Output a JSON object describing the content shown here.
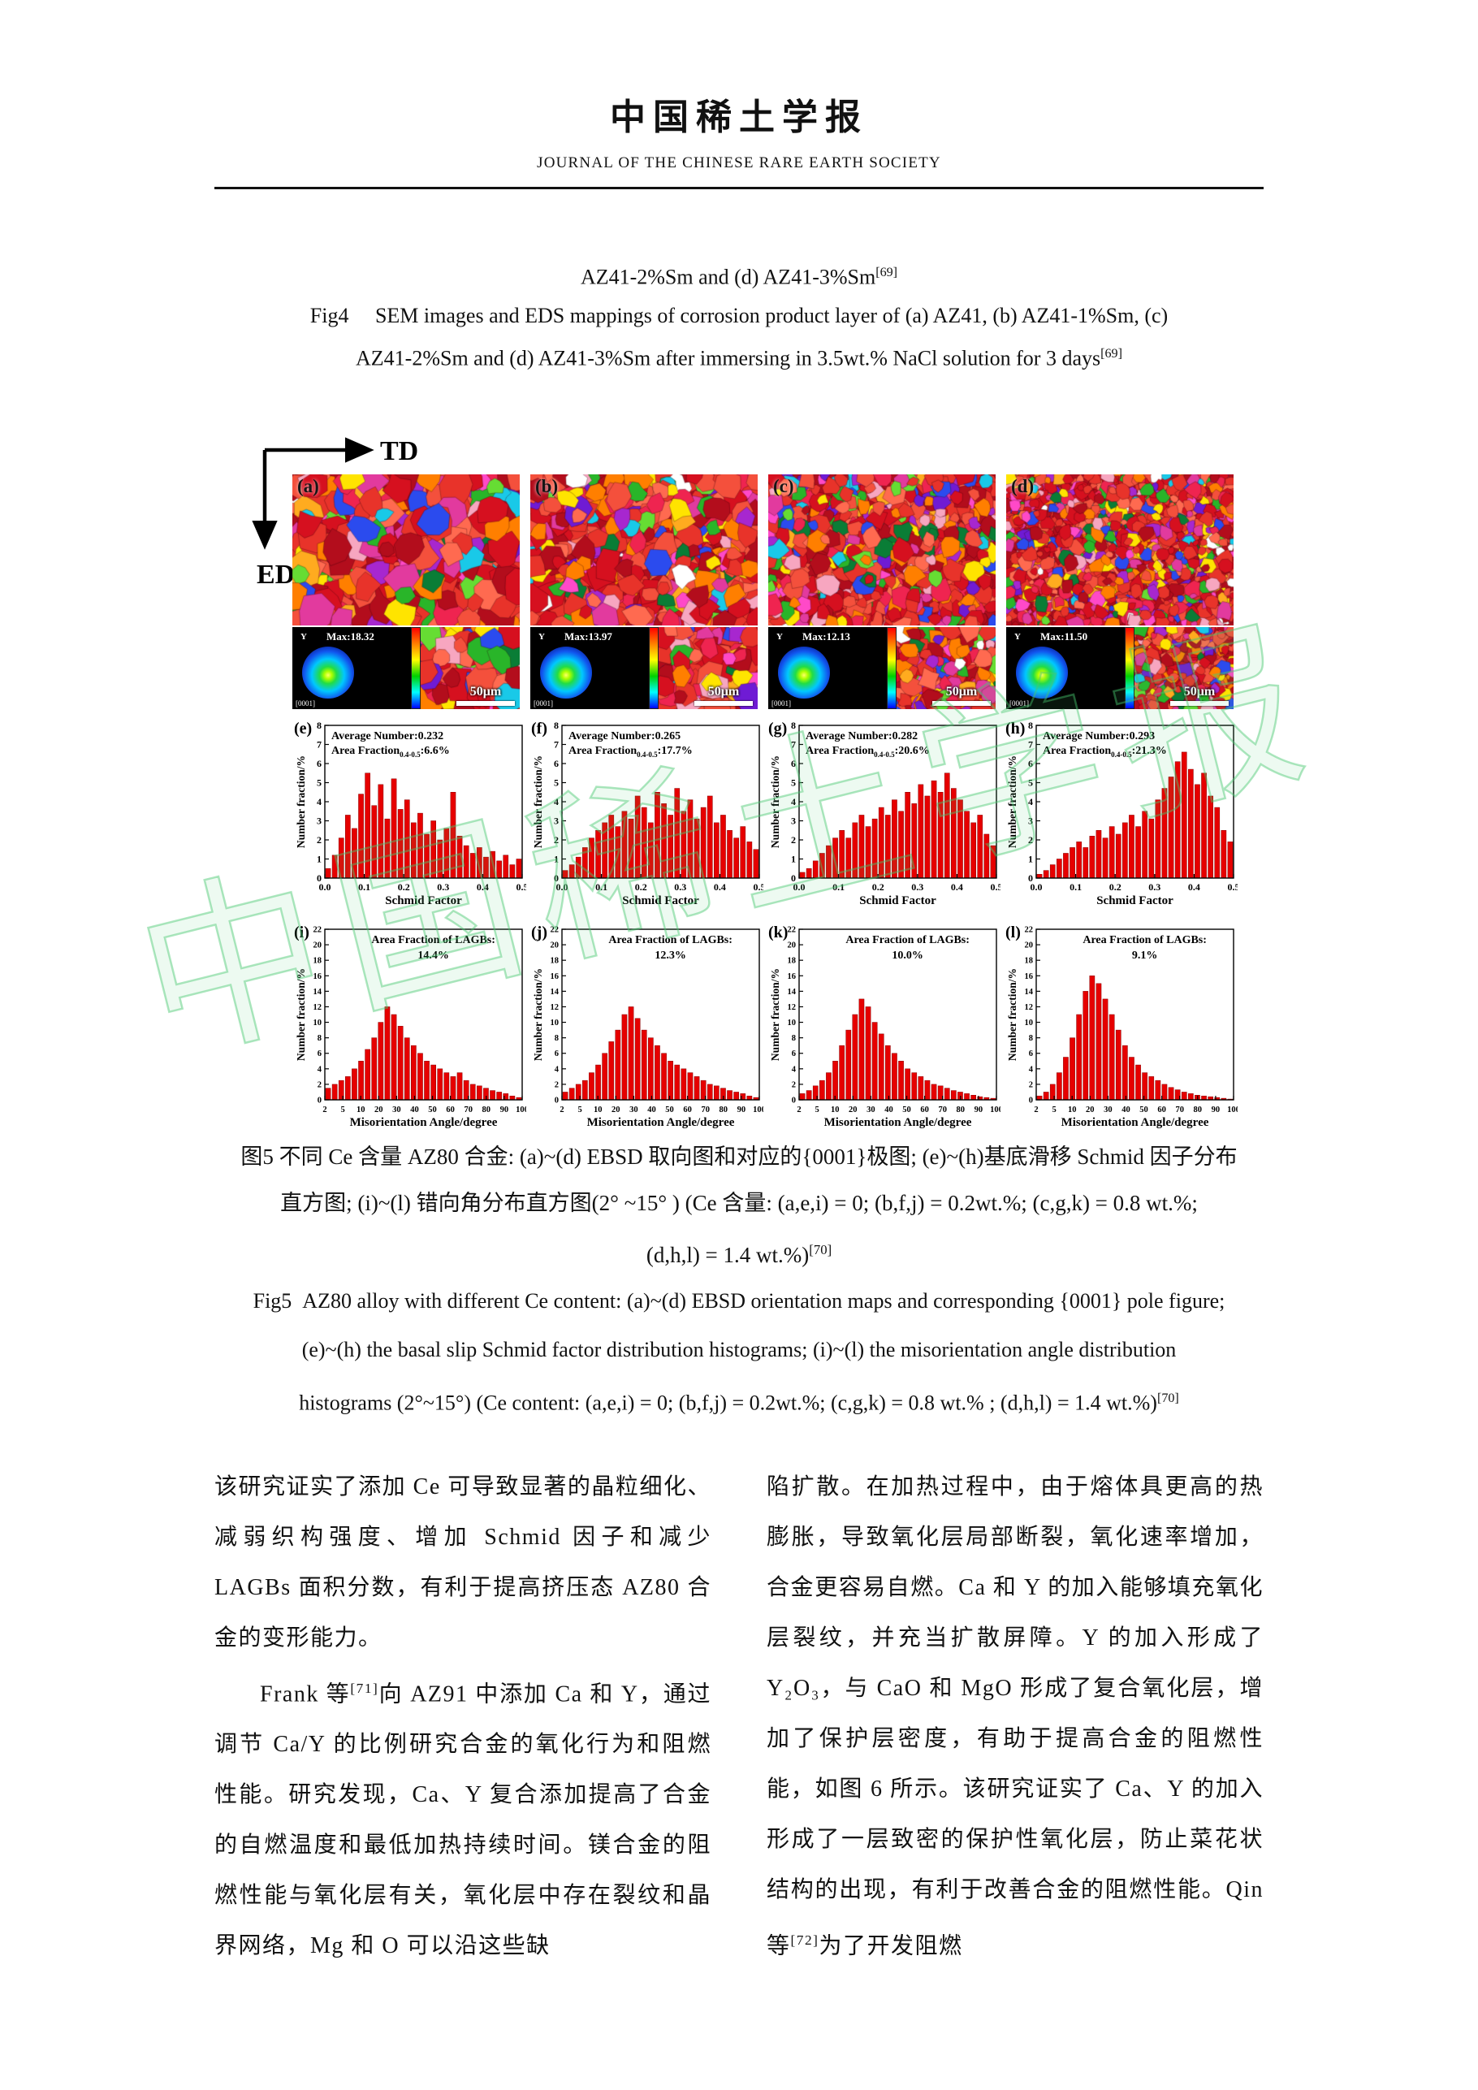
{
  "header": {
    "journal_title_zh": "中国稀土学报",
    "journal_title_en": "JOURNAL OF THE CHINESE RARE EARTH SOCIETY"
  },
  "fig4_caption": {
    "lines": [
      "AZ41-2%Sm and (d) AZ41-3%Sm[69]",
      "Fig4     SEM images and EDS mappings of corrosion product layer of (a) AZ41, (b) AZ41-1%Sm, (c)",
      "AZ41-2%Sm and (d) AZ41-3%Sm after immersing in 3.5wt.% NaCl solution for 3 days[69]"
    ]
  },
  "figure5": {
    "td_label": "TD",
    "ed_label": "ED",
    "columns": [
      {
        "panel_letter": "(a)",
        "pole_max": "Max:18.32",
        "pole_axis": "Y",
        "pole_plane": "[0001]",
        "scale_label": "50μm"
      },
      {
        "panel_letter": "(b)",
        "pole_max": "Max:13.97",
        "pole_axis": "Y",
        "pole_plane": "[0001]",
        "scale_label": "50μm"
      },
      {
        "panel_letter": "(c)",
        "pole_max": "Max:12.13",
        "pole_axis": "Y",
        "pole_plane": "[0001]",
        "scale_label": "50μm"
      },
      {
        "panel_letter": "(d)",
        "pole_max": "Max:11.50",
        "pole_axis": "Y",
        "pole_plane": "[0001]",
        "scale_label": "50μm"
      }
    ]
  },
  "chart_data": [
    {
      "type": "bar",
      "panel": "(e)",
      "xlabel": "Schmid Factor",
      "ylabel": "Number fraction/%",
      "ylim": [
        0,
        8
      ],
      "ytick_step": 1,
      "x_range": [
        0,
        0.5
      ],
      "xticks": [
        "0.0",
        "0.1",
        "0.2",
        "0.3",
        "0.4",
        "0.5"
      ],
      "average_number": 0.232,
      "area_fraction_0p4_0p5": "6.6%",
      "annotation": {
        "line1": "Average Number:0.232",
        "line2_pre": "Area Fraction",
        "line2_sub": "0.4-0.5",
        "line2_post": ":6.6%"
      },
      "values": [
        0.5,
        1.2,
        2.1,
        3.3,
        2.6,
        4.4,
        5.5,
        3.8,
        4.9,
        3.1,
        5.2,
        3.6,
        4.1,
        2.9,
        3.4,
        2.3,
        3.0,
        2.0,
        2.6,
        4.5,
        2.2,
        1.7,
        1.3,
        1.6,
        1.1,
        1.4,
        0.9,
        1.2,
        0.7,
        1.0
      ]
    },
    {
      "type": "bar",
      "panel": "(f)",
      "xlabel": "Schmid Factor",
      "ylabel": "Number fraction/%",
      "ylim": [
        0,
        8
      ],
      "ytick_step": 1,
      "x_range": [
        0,
        0.5
      ],
      "xticks": [
        "0.0",
        "0.1",
        "0.2",
        "0.3",
        "0.4",
        "0.5"
      ],
      "average_number": 0.265,
      "area_fraction_0p4_0p5": "17.7%",
      "annotation": {
        "line1": "Average Number:0.265",
        "line2_pre": "Area Fraction",
        "line2_sub": "0.4-0.5",
        "line2_post": ":17.7%"
      },
      "values": [
        0.4,
        0.7,
        1.1,
        1.6,
        2.1,
        2.5,
        2.9,
        3.3,
        2.7,
        3.5,
        3.1,
        4.3,
        3.7,
        2.9,
        4.5,
        3.9,
        3.3,
        4.7,
        3.5,
        4.1,
        3.1,
        3.7,
        4.3,
        2.9,
        3.3,
        2.5,
        2.1,
        2.7,
        1.9,
        1.5
      ]
    },
    {
      "type": "bar",
      "panel": "(g)",
      "xlabel": "Schmid Factor",
      "ylabel": "Number fraction/%",
      "ylim": [
        0,
        8
      ],
      "ytick_step": 1,
      "x_range": [
        0,
        0.5
      ],
      "xticks": [
        "0.0",
        "0.1",
        "0.2",
        "0.3",
        "0.4",
        "0.5"
      ],
      "average_number": 0.282,
      "area_fraction_0p4_0p5": "20.6%",
      "annotation": {
        "line1": "Average Number:0.282",
        "line2_pre": "Area Fraction",
        "line2_sub": "0.4-0.5",
        "line2_post": ":20.6%"
      },
      "values": [
        0.3,
        0.5,
        0.9,
        1.3,
        1.7,
        2.1,
        2.5,
        2.1,
        2.9,
        3.3,
        2.7,
        3.1,
        3.7,
        3.3,
        4.1,
        3.5,
        4.5,
        3.9,
        4.9,
        4.3,
        5.1,
        4.5,
        5.5,
        4.7,
        4.1,
        3.5,
        2.9,
        3.3,
        2.3,
        1.7
      ]
    },
    {
      "type": "bar",
      "panel": "(h)",
      "xlabel": "Schmid Factor",
      "ylabel": "Number fraction/%",
      "ylim": [
        0,
        8
      ],
      "ytick_step": 1,
      "x_range": [
        0,
        0.5
      ],
      "xticks": [
        "0.0",
        "0.1",
        "0.2",
        "0.3",
        "0.4",
        "0.5"
      ],
      "average_number": 0.293,
      "area_fraction_0p4_0p5": "21.3%",
      "annotation": {
        "line1": "Average Number:0.293",
        "line2_pre": "Area Fraction",
        "line2_sub": "0.4-0.5",
        "line2_post": ":21.3%"
      },
      "values": [
        0.2,
        0.4,
        0.7,
        1.0,
        1.3,
        1.6,
        1.9,
        1.6,
        2.2,
        2.5,
        2.1,
        2.7,
        2.3,
        2.9,
        3.3,
        2.7,
        3.5,
        3.1,
        4.1,
        4.7,
        5.3,
        6.1,
        6.6,
        5.7,
        4.9,
        5.5,
        4.3,
        3.7,
        2.5,
        1.9
      ]
    },
    {
      "type": "bar",
      "panel": "(i)",
      "xlabel": "Misorientation Angle/degree",
      "ylabel": "Number fraction/%",
      "ylim": [
        0,
        22
      ],
      "ytick_step": 2,
      "x_range": [
        2,
        100
      ],
      "xticks": [
        "2",
        "5",
        "10",
        "20",
        "30",
        "40",
        "50",
        "60",
        "70",
        "80",
        "90",
        "100"
      ],
      "area_fraction_lagbs": "14.4%",
      "annotation": {
        "line1": "Area Fraction of LAGBs:",
        "line2": "14.4%"
      },
      "values": [
        1.5,
        2.0,
        2.5,
        3.0,
        4.0,
        5.0,
        6.5,
        8.0,
        10.0,
        12.0,
        11.0,
        9.5,
        8.0,
        7.0,
        6.0,
        5.0,
        4.5,
        4.0,
        3.5,
        3.0,
        3.5,
        2.5,
        2.0,
        1.8,
        1.5,
        1.2,
        1.0,
        0.8,
        0.5,
        0.3
      ]
    },
    {
      "type": "bar",
      "panel": "(j)",
      "xlabel": "Misorientation Angle/degree",
      "ylabel": "Number fraction/%",
      "ylim": [
        0,
        22
      ],
      "ytick_step": 2,
      "x_range": [
        2,
        100
      ],
      "xticks": [
        "2",
        "5",
        "10",
        "20",
        "30",
        "40",
        "50",
        "60",
        "70",
        "80",
        "90",
        "100"
      ],
      "area_fraction_lagbs": "12.3%",
      "annotation": {
        "line1": "Area Fraction of LAGBs:",
        "line2": "12.3%"
      },
      "values": [
        1.0,
        1.5,
        2.0,
        2.5,
        3.5,
        4.5,
        6.0,
        7.5,
        9.0,
        11.0,
        12.0,
        10.5,
        9.0,
        8.0,
        7.0,
        6.0,
        5.0,
        4.5,
        4.0,
        3.5,
        3.0,
        2.5,
        2.0,
        1.8,
        1.5,
        1.2,
        1.0,
        0.8,
        0.5,
        0.3
      ]
    },
    {
      "type": "bar",
      "panel": "(k)",
      "xlabel": "Misorientation Angle/degree",
      "ylabel": "Number fraction/%",
      "ylim": [
        0,
        22
      ],
      "ytick_step": 2,
      "x_range": [
        2,
        100
      ],
      "xticks": [
        "2",
        "5",
        "10",
        "20",
        "30",
        "40",
        "50",
        "60",
        "70",
        "80",
        "90",
        "100"
      ],
      "area_fraction_lagbs": "10.0%",
      "annotation": {
        "line1": "Area Fraction of LAGBs:",
        "line2": "10.0%"
      },
      "values": [
        0.8,
        1.2,
        1.8,
        2.5,
        3.5,
        5.0,
        7.0,
        9.0,
        11.0,
        13.0,
        12.0,
        10.0,
        8.5,
        7.0,
        6.0,
        5.0,
        4.0,
        3.5,
        3.0,
        2.5,
        2.0,
        1.8,
        1.5,
        1.2,
        1.0,
        0.8,
        0.6,
        0.4,
        0.3,
        0.2
      ]
    },
    {
      "type": "bar",
      "panel": "(l)",
      "xlabel": "Misorientation Angle/degree",
      "ylabel": "Number fraction/%",
      "ylim": [
        0,
        22
      ],
      "ytick_step": 2,
      "x_range": [
        2,
        100
      ],
      "xticks": [
        "2",
        "5",
        "10",
        "20",
        "30",
        "40",
        "50",
        "60",
        "70",
        "80",
        "90",
        "100"
      ],
      "area_fraction_lagbs": "9.1%",
      "annotation": {
        "line1": "Area Fraction of LAGBs:",
        "line2": "9.1%"
      },
      "values": [
        0.5,
        1.0,
        2.0,
        3.5,
        5.5,
        8.0,
        11.0,
        14.0,
        16.0,
        15.0,
        13.0,
        11.0,
        9.0,
        7.0,
        5.5,
        4.5,
        3.5,
        3.0,
        2.5,
        2.0,
        1.6,
        1.3,
        1.0,
        0.8,
        0.6,
        0.5,
        0.4,
        0.3,
        0.2,
        0.1
      ]
    }
  ],
  "fig5_caption_zh": {
    "lines": [
      "图5 不同 Ce 含量 AZ80 合金: (a)~(d) EBSD 取向图和对应的{0001}极图; (e)~(h)基底滑移 Schmid 因子分布",
      "直方图; (i)~(l) 错向角分布直方图(2° ~15° ) (Ce 含量: (a,e,i) = 0; (b,f,j) = 0.2wt.%; (c,g,k) = 0.8 wt.%;",
      "(d,h,l) = 1.4 wt.%)[70]"
    ]
  },
  "fig5_caption_en": {
    "lines": [
      "Fig5  AZ80 alloy with different Ce content: (a)~(d) EBSD orientation maps and corresponding {0001} pole figure;",
      "(e)~(h) the basal slip Schmid factor distribution histograms; (i)~(l) the misorientation angle distribution",
      "histograms (2°~15°) (Ce content: (a,e,i) = 0; (b,f,j) = 0.2wt.%; (c,g,k) = 0.8 wt.% ; (d,h,l) = 1.4 wt.%)[70]"
    ]
  },
  "body": {
    "left": [
      "该研究证实了添加 Ce 可导致显著的晶粒细化、减弱织构强度、增加 Schmid 因子和减少 LAGBs 面积分数，有利于提高挤压态 AZ80 合金的变形能力。",
      "Frank 等[71]向 AZ91 中添加 Ca 和 Y，通过调节 Ca/Y 的比例研究合金的氧化行为和阻燃性能。研究发现，Ca、Y 复合添加提高了合金的自燃温度和最低加热持续时间。镁合金的阻燃性能与氧化层有关，氧化层中存在裂纹和晶界网络，Mg 和 O 可以沿这些缺"
    ],
    "right": [
      "陷扩散。在加热过程中，由于熔体具更高的热膨胀，导致氧化层局部断裂，氧化速率增加，合金更容易自燃。Ca 和 Y 的加入能够填充氧化层裂纹，并充当扩散屏障。Y 的加入形成了 Y₂O₃，与 CaO 和 MgO 形成了复合氧化层，增加了保护层密度，有助于提高合金的阻燃性能，如图 6 所示。该研究证实了 Ca、Y 的加入形成了一层致密的保护性氧化层，防止菜花状结构的出现，有利于改善合金的阻燃性能。Qin 等[72]为了开发阻燃"
    ]
  },
  "watermark": {
    "text": "中国稀土学报"
  }
}
